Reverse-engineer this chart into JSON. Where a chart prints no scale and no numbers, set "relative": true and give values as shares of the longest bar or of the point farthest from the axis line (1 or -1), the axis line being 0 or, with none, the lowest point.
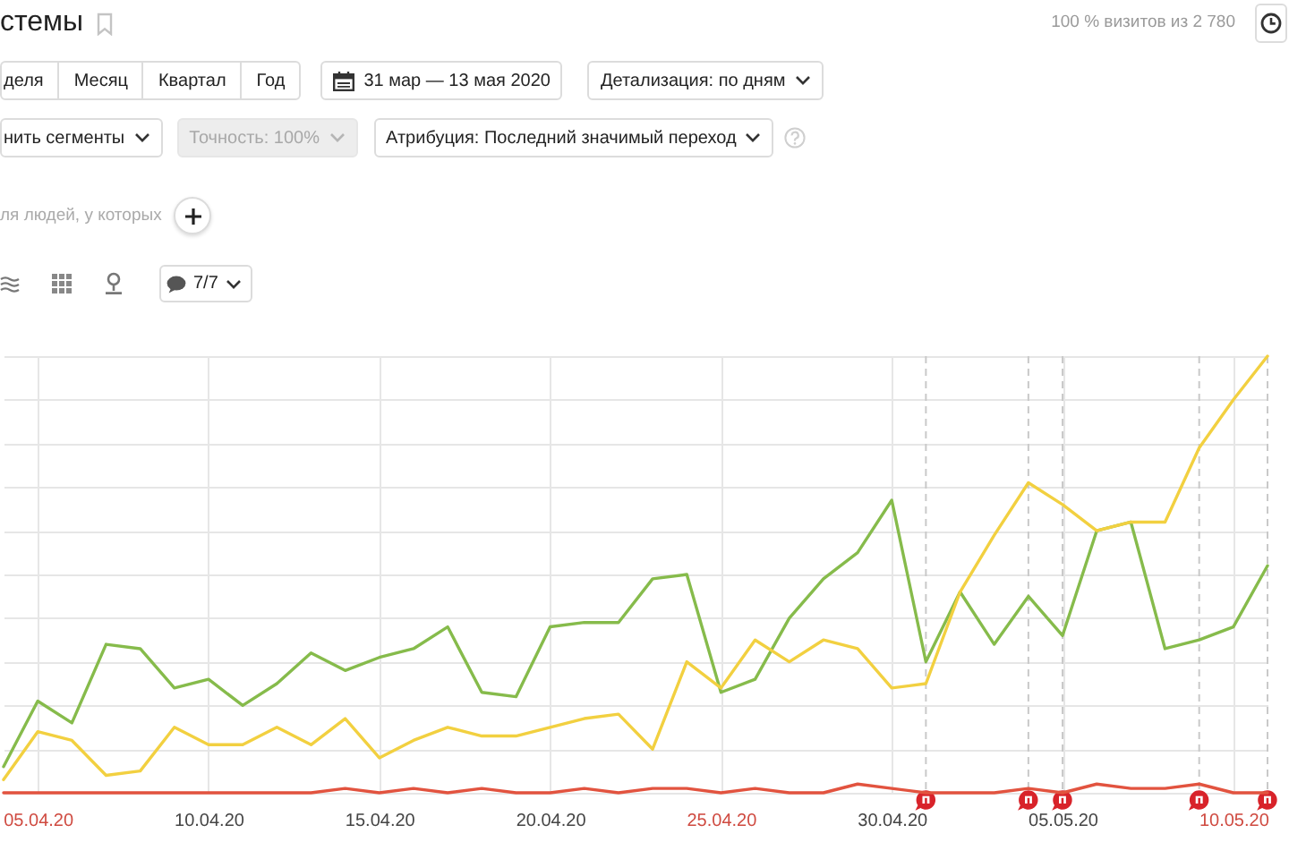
{
  "chart_data": {
    "type": "line",
    "title": "стемы",
    "relative": true,
    "x": [
      "2020-04-04",
      "2020-04-05",
      "2020-04-06",
      "2020-04-07",
      "2020-04-08",
      "2020-04-09",
      "2020-04-10",
      "2020-04-11",
      "2020-04-12",
      "2020-04-13",
      "2020-04-14",
      "2020-04-15",
      "2020-04-16",
      "2020-04-17",
      "2020-04-18",
      "2020-04-19",
      "2020-04-20",
      "2020-04-21",
      "2020-04-22",
      "2020-04-23",
      "2020-04-24",
      "2020-04-25",
      "2020-04-26",
      "2020-04-27",
      "2020-04-28",
      "2020-04-29",
      "2020-04-30",
      "2020-05-01",
      "2020-05-02",
      "2020-05-03",
      "2020-05-04",
      "2020-05-05",
      "2020-05-06",
      "2020-05-07",
      "2020-05-08",
      "2020-05-09",
      "2020-05-10",
      "2020-05-11"
    ],
    "xlim": [
      "2020-04-04",
      "2020-05-11"
    ],
    "xticks": [
      {
        "value": "2020-04-05",
        "label": "05.04.20"
      },
      {
        "value": "2020-04-10",
        "label": "10.04.20"
      },
      {
        "value": "2020-04-15",
        "label": "15.04.20"
      },
      {
        "value": "2020-04-20",
        "label": "20.04.20"
      },
      {
        "value": "2020-04-25",
        "label": "25.04.20"
      },
      {
        "value": "2020-04-30",
        "label": "30.04.20"
      },
      {
        "value": "2020-05-05",
        "label": "05.05.20"
      },
      {
        "value": "2020-05-10",
        "label": "10.05.20"
      }
    ],
    "series": [
      {
        "color": "#86bb4b",
        "values": [
          0.06,
          0.21,
          0.16,
          0.34,
          0.33,
          0.24,
          0.26,
          0.2,
          0.25,
          0.32,
          0.28,
          0.31,
          0.33,
          0.38,
          0.23,
          0.22,
          0.38,
          0.39,
          0.39,
          0.49,
          0.5,
          0.23,
          0.26,
          0.4,
          0.49,
          0.55,
          0.67,
          0.3,
          0.46,
          0.34,
          0.45,
          0.36,
          0.6,
          0.62,
          0.33,
          0.35,
          0.38,
          0.52
        ]
      },
      {
        "color": "#f2d040",
        "values": [
          0.03,
          0.14,
          0.12,
          0.04,
          0.05,
          0.15,
          0.11,
          0.11,
          0.15,
          0.11,
          0.17,
          0.08,
          0.12,
          0.15,
          0.13,
          0.13,
          0.15,
          0.17,
          0.18,
          0.1,
          0.3,
          0.24,
          0.35,
          0.3,
          0.35,
          0.33,
          0.24,
          0.25,
          0.46,
          0.59,
          0.71,
          0.66,
          0.6,
          0.62,
          0.62,
          0.79,
          0.9,
          1
        ]
      },
      {
        "color": "#e2533f",
        "values": [
          0,
          0,
          0,
          0,
          0,
          0,
          0,
          0,
          0,
          0,
          0.01,
          0,
          0.01,
          0,
          0.01,
          0,
          0,
          0.01,
          0,
          0.01,
          0.01,
          0,
          0.01,
          0,
          0,
          0.02,
          0.01,
          0,
          0,
          0,
          0.01,
          0,
          0.02,
          0.01,
          0.01,
          0.02,
          0,
          0
        ]
      }
    ],
    "grid": true,
    "ref_lines": [
      {
        "axis": "x",
        "value": "2020-05-01",
        "label": "п",
        "line_style": "dashed"
      },
      {
        "axis": "x",
        "value": "2020-05-04",
        "label": "п",
        "line_style": "dashed"
      },
      {
        "axis": "x",
        "value": "2020-05-05",
        "label": "п",
        "line_style": "dashed"
      },
      {
        "axis": "x",
        "value": "2020-05-09",
        "label": "п",
        "line_style": "dashed"
      },
      {
        "axis": "x",
        "value": "2020-05-11",
        "label": "п",
        "line_style": "dashed"
      }
    ],
    "annotations": [
      "100 % визитов из 2 780",
      "деля",
      "Месяц",
      "Квартал",
      "Год",
      "31 мар — 13 мая 2020",
      "Детализация: по дням",
      "нить сегменты",
      "Точность: 100%",
      "Атрибуция: Последний значимый переход",
      "ля людей, у которых",
      "7/7"
    ]
  }
}
